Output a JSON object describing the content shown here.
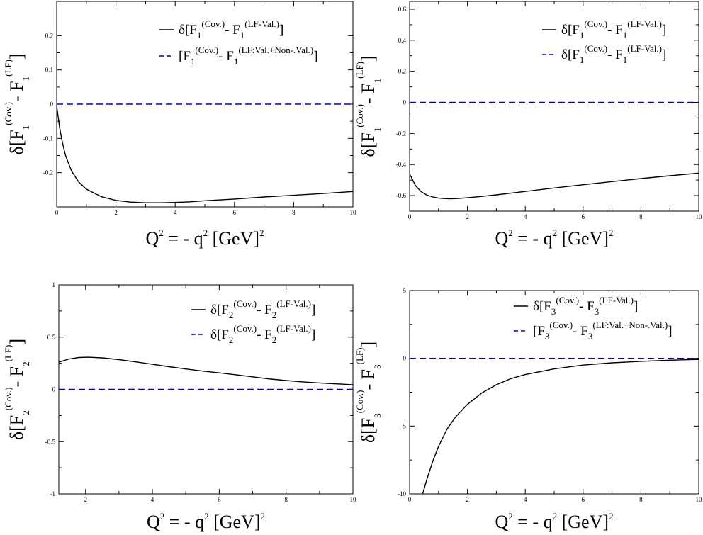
{
  "chart_data": [
    {
      "type": "line",
      "xlim": [
        0,
        10
      ],
      "ylim": [
        -0.3,
        0.3
      ],
      "xticks": [
        0,
        2,
        4,
        6,
        8,
        10
      ],
      "yticks": [
        -0.2,
        -0.1,
        0,
        0.1,
        0.2
      ],
      "xtick_labels": [
        "0",
        "2",
        "4",
        "6",
        "8",
        "10"
      ],
      "ytick_labels": [
        "-0.2",
        "-0.1",
        "0",
        "0.1",
        "0.2"
      ],
      "xlabel": {
        "base": "Q",
        "sup1": "2",
        "mid": " = - q",
        "sup2": "2",
        "unit": " [GeV]",
        "sup3": "2"
      },
      "ylabel": {
        "pre": "δ[F",
        "sub": "1",
        "sup": "(Cov.)",
        "mid": "-    F",
        "sub2": "1",
        "sup2": "(LF)",
        "post": "]"
      },
      "legend_position": "top-right",
      "series": [
        {
          "name": "δ[F1(Cov.) - F1(LF-Val.)]",
          "color": "#000000",
          "dash": "solid",
          "legend": {
            "pre": "δ[F",
            "sub": "1",
            "sup": "(Cov.)",
            "mid": "-    F",
            "sub2": "1",
            "sup2": "(LF-Val.)",
            "post": "]"
          },
          "x": [
            0,
            0.1,
            0.2,
            0.3,
            0.5,
            0.75,
            1,
            1.5,
            2,
            2.5,
            3,
            3.5,
            4,
            4.5,
            5,
            6,
            7,
            8,
            9,
            10
          ],
          "y": [
            -0.005,
            -0.07,
            -0.115,
            -0.15,
            -0.195,
            -0.228,
            -0.248,
            -0.27,
            -0.281,
            -0.286,
            -0.288,
            -0.288,
            -0.287,
            -0.285,
            -0.282,
            -0.277,
            -0.271,
            -0.266,
            -0.261,
            -0.255
          ]
        },
        {
          "name": "[F1(Cov.) - F1(LF:Val.+Non-.Val.)]",
          "color": "#0000cc",
          "dash": "dashed",
          "legend": {
            "pre": "[F",
            "sub": "1",
            "sup": "(Cov.)",
            "mid": "-    F",
            "sub2": "1",
            "sup2": "(LF:Val.+Non-.Val.)",
            "post": "]"
          },
          "x": [
            0,
            10
          ],
          "y": [
            0,
            0
          ]
        }
      ]
    },
    {
      "type": "line",
      "xlim": [
        0,
        10
      ],
      "ylim": [
        -0.7,
        0.65
      ],
      "xticks": [
        0,
        2,
        4,
        6,
        8,
        10
      ],
      "yticks": [
        -0.6,
        -0.4,
        -0.2,
        0,
        0.2,
        0.4,
        0.6
      ],
      "xtick_labels": [
        "0",
        "2",
        "4",
        "6",
        "8",
        "10"
      ],
      "ytick_labels": [
        "-0.6",
        "-0.4",
        "-0.2",
        "0",
        "0.2",
        "0.4",
        "0.6"
      ],
      "xlabel": {
        "base": "Q",
        "sup1": "2",
        "mid": " = - q",
        "sup2": "2",
        "unit": " [GeV]",
        "sup3": "2"
      },
      "ylabel": {
        "pre": "δ[F",
        "sub": "1",
        "sup": "(Cov.)",
        "mid": "-    F",
        "sub2": "1",
        "sup2": "(LF)",
        "post": "]"
      },
      "legend_position": "top-right",
      "series": [
        {
          "name": "δ[F1(Cov.) - F1(LF-Val.)]",
          "color": "#000000",
          "dash": "solid",
          "legend": {
            "pre": "δ[F",
            "sub": "1",
            "sup": "(Cov.)",
            "mid": "-    F",
            "sub2": "1",
            "sup2": "(LF-Val.)",
            "post": "]"
          },
          "x": [
            0,
            0.2,
            0.4,
            0.6,
            0.8,
            1,
            1.2,
            1.4,
            1.7,
            2,
            2.5,
            3,
            4,
            5,
            6,
            7,
            8,
            9,
            10
          ],
          "y": [
            -0.46,
            -0.535,
            -0.575,
            -0.597,
            -0.609,
            -0.616,
            -0.619,
            -0.62,
            -0.618,
            -0.614,
            -0.605,
            -0.595,
            -0.573,
            -0.551,
            -0.53,
            -0.51,
            -0.49,
            -0.472,
            -0.455
          ]
        },
        {
          "name": "δ[F1(Cov.) - F1(LF-Val.)]",
          "color": "#0000cc",
          "dash": "dashed",
          "legend": {
            "pre": "δ[F",
            "sub": "1",
            "sup": "(Cov.)",
            "mid": "-    F",
            "sub2": "1",
            "sup2": "(LF-Val.)",
            "post": "]"
          },
          "x": [
            0,
            10
          ],
          "y": [
            0,
            0
          ]
        }
      ]
    },
    {
      "type": "line",
      "xlim": [
        1.2,
        10
      ],
      "ylim": [
        -1,
        1
      ],
      "xticks": [
        2,
        4,
        6,
        8,
        10
      ],
      "yticks": [
        -1,
        -0.5,
        0,
        0.5,
        1
      ],
      "xtick_labels": [
        "2",
        "4",
        "6",
        "8",
        "10"
      ],
      "ytick_labels": [
        "-1",
        "-0.5",
        "0",
        "0.5",
        "1"
      ],
      "xlabel": {
        "base": "Q",
        "sup1": "2",
        "mid": " = - q",
        "sup2": "2",
        "unit": " [GeV]",
        "sup3": "2"
      },
      "ylabel": {
        "pre": "δ[F",
        "sub": "2",
        "sup": "(Cov.)",
        "mid": "-    F",
        "sub2": "2",
        "sup2": "(LF)",
        "post": "]"
      },
      "legend_position": "top-right",
      "series": [
        {
          "name": "δ[F2(Cov.) - F2(LF-Val.)]",
          "color": "#000000",
          "dash": "solid",
          "legend": {
            "pre": "δ[F",
            "sub": "2",
            "sup": "(Cov.)",
            "mid": "-    F",
            "sub2": "2",
            "sup2": "(LF-Val.)",
            "post": "]"
          },
          "x": [
            1.2,
            1.5,
            1.8,
            2.1,
            2.5,
            3,
            3.5,
            4,
            4.5,
            5,
            5.5,
            6,
            6.5,
            7,
            7.5,
            8,
            8.5,
            9,
            9.5,
            10
          ],
          "y": [
            0.26,
            0.29,
            0.305,
            0.308,
            0.302,
            0.285,
            0.263,
            0.24,
            0.217,
            0.195,
            0.175,
            0.158,
            0.14,
            0.12,
            0.1,
            0.085,
            0.072,
            0.062,
            0.053,
            0.045
          ]
        },
        {
          "name": "δ[F2(Cov.) - F2(LF-Val.)]",
          "color": "#0000cc",
          "dash": "dashed",
          "legend": {
            "pre": "δ[F",
            "sub": "2",
            "sup": "(Cov.)",
            "mid": "-    F",
            "sub2": "2",
            "sup2": "(LF-Val.)",
            "post": "]"
          },
          "x": [
            1.2,
            10
          ],
          "y": [
            0,
            0
          ]
        }
      ]
    },
    {
      "type": "line",
      "xlim": [
        0,
        10
      ],
      "ylim": [
        -10,
        5
      ],
      "xticks": [
        0,
        2,
        4,
        6,
        8,
        10
      ],
      "yticks": [
        -10,
        -5,
        0,
        5
      ],
      "xtick_labels": [
        "0",
        "2",
        "4",
        "6",
        "8",
        "10"
      ],
      "ytick_labels": [
        "-10",
        "-5",
        "0",
        "5"
      ],
      "xlabel": {
        "base": "Q",
        "sup1": "2",
        "mid": " = - q",
        "sup2": "2",
        "unit": " [GeV]",
        "sup3": "2"
      },
      "ylabel": {
        "pre": "δ[F",
        "sub": "3",
        "sup": "(Cov.)",
        "mid": "-    F",
        "sub2": "3",
        "sup2": "(LF)",
        "post": "]"
      },
      "legend_position": "top-right",
      "series": [
        {
          "name": "δ[F3(Cov.) - F3(LF-Val.)]",
          "color": "#000000",
          "dash": "solid",
          "legend": {
            "pre": "δ[F",
            "sub": "3",
            "sup": "(Cov.)",
            "mid": "-    F",
            "sub2": "3",
            "sup2": "(LF-Val.)",
            "post": "]"
          },
          "x": [
            0.45,
            0.6,
            0.8,
            1,
            1.3,
            1.6,
            2,
            2.5,
            3,
            3.5,
            4,
            5,
            6,
            7,
            8,
            9,
            10
          ],
          "y": [
            -10,
            -8.9,
            -7.6,
            -6.5,
            -5.2,
            -4.3,
            -3.4,
            -2.55,
            -1.95,
            -1.5,
            -1.2,
            -0.78,
            -0.5,
            -0.33,
            -0.22,
            -0.14,
            -0.08
          ]
        },
        {
          "name": "[F3(Cov.) - F3(LF:Val.+Non-.Val.)]",
          "color": "#0000cc",
          "dash": "dashed",
          "legend": {
            "pre": "[F",
            "sub": "3",
            "sup": "(Cov.)",
            "mid": "-    F",
            "sub2": "3",
            "sup2": "(LF:Val.+Non-.Val.)",
            "post": "]"
          },
          "x": [
            0,
            10
          ],
          "y": [
            0,
            0
          ]
        }
      ]
    }
  ]
}
